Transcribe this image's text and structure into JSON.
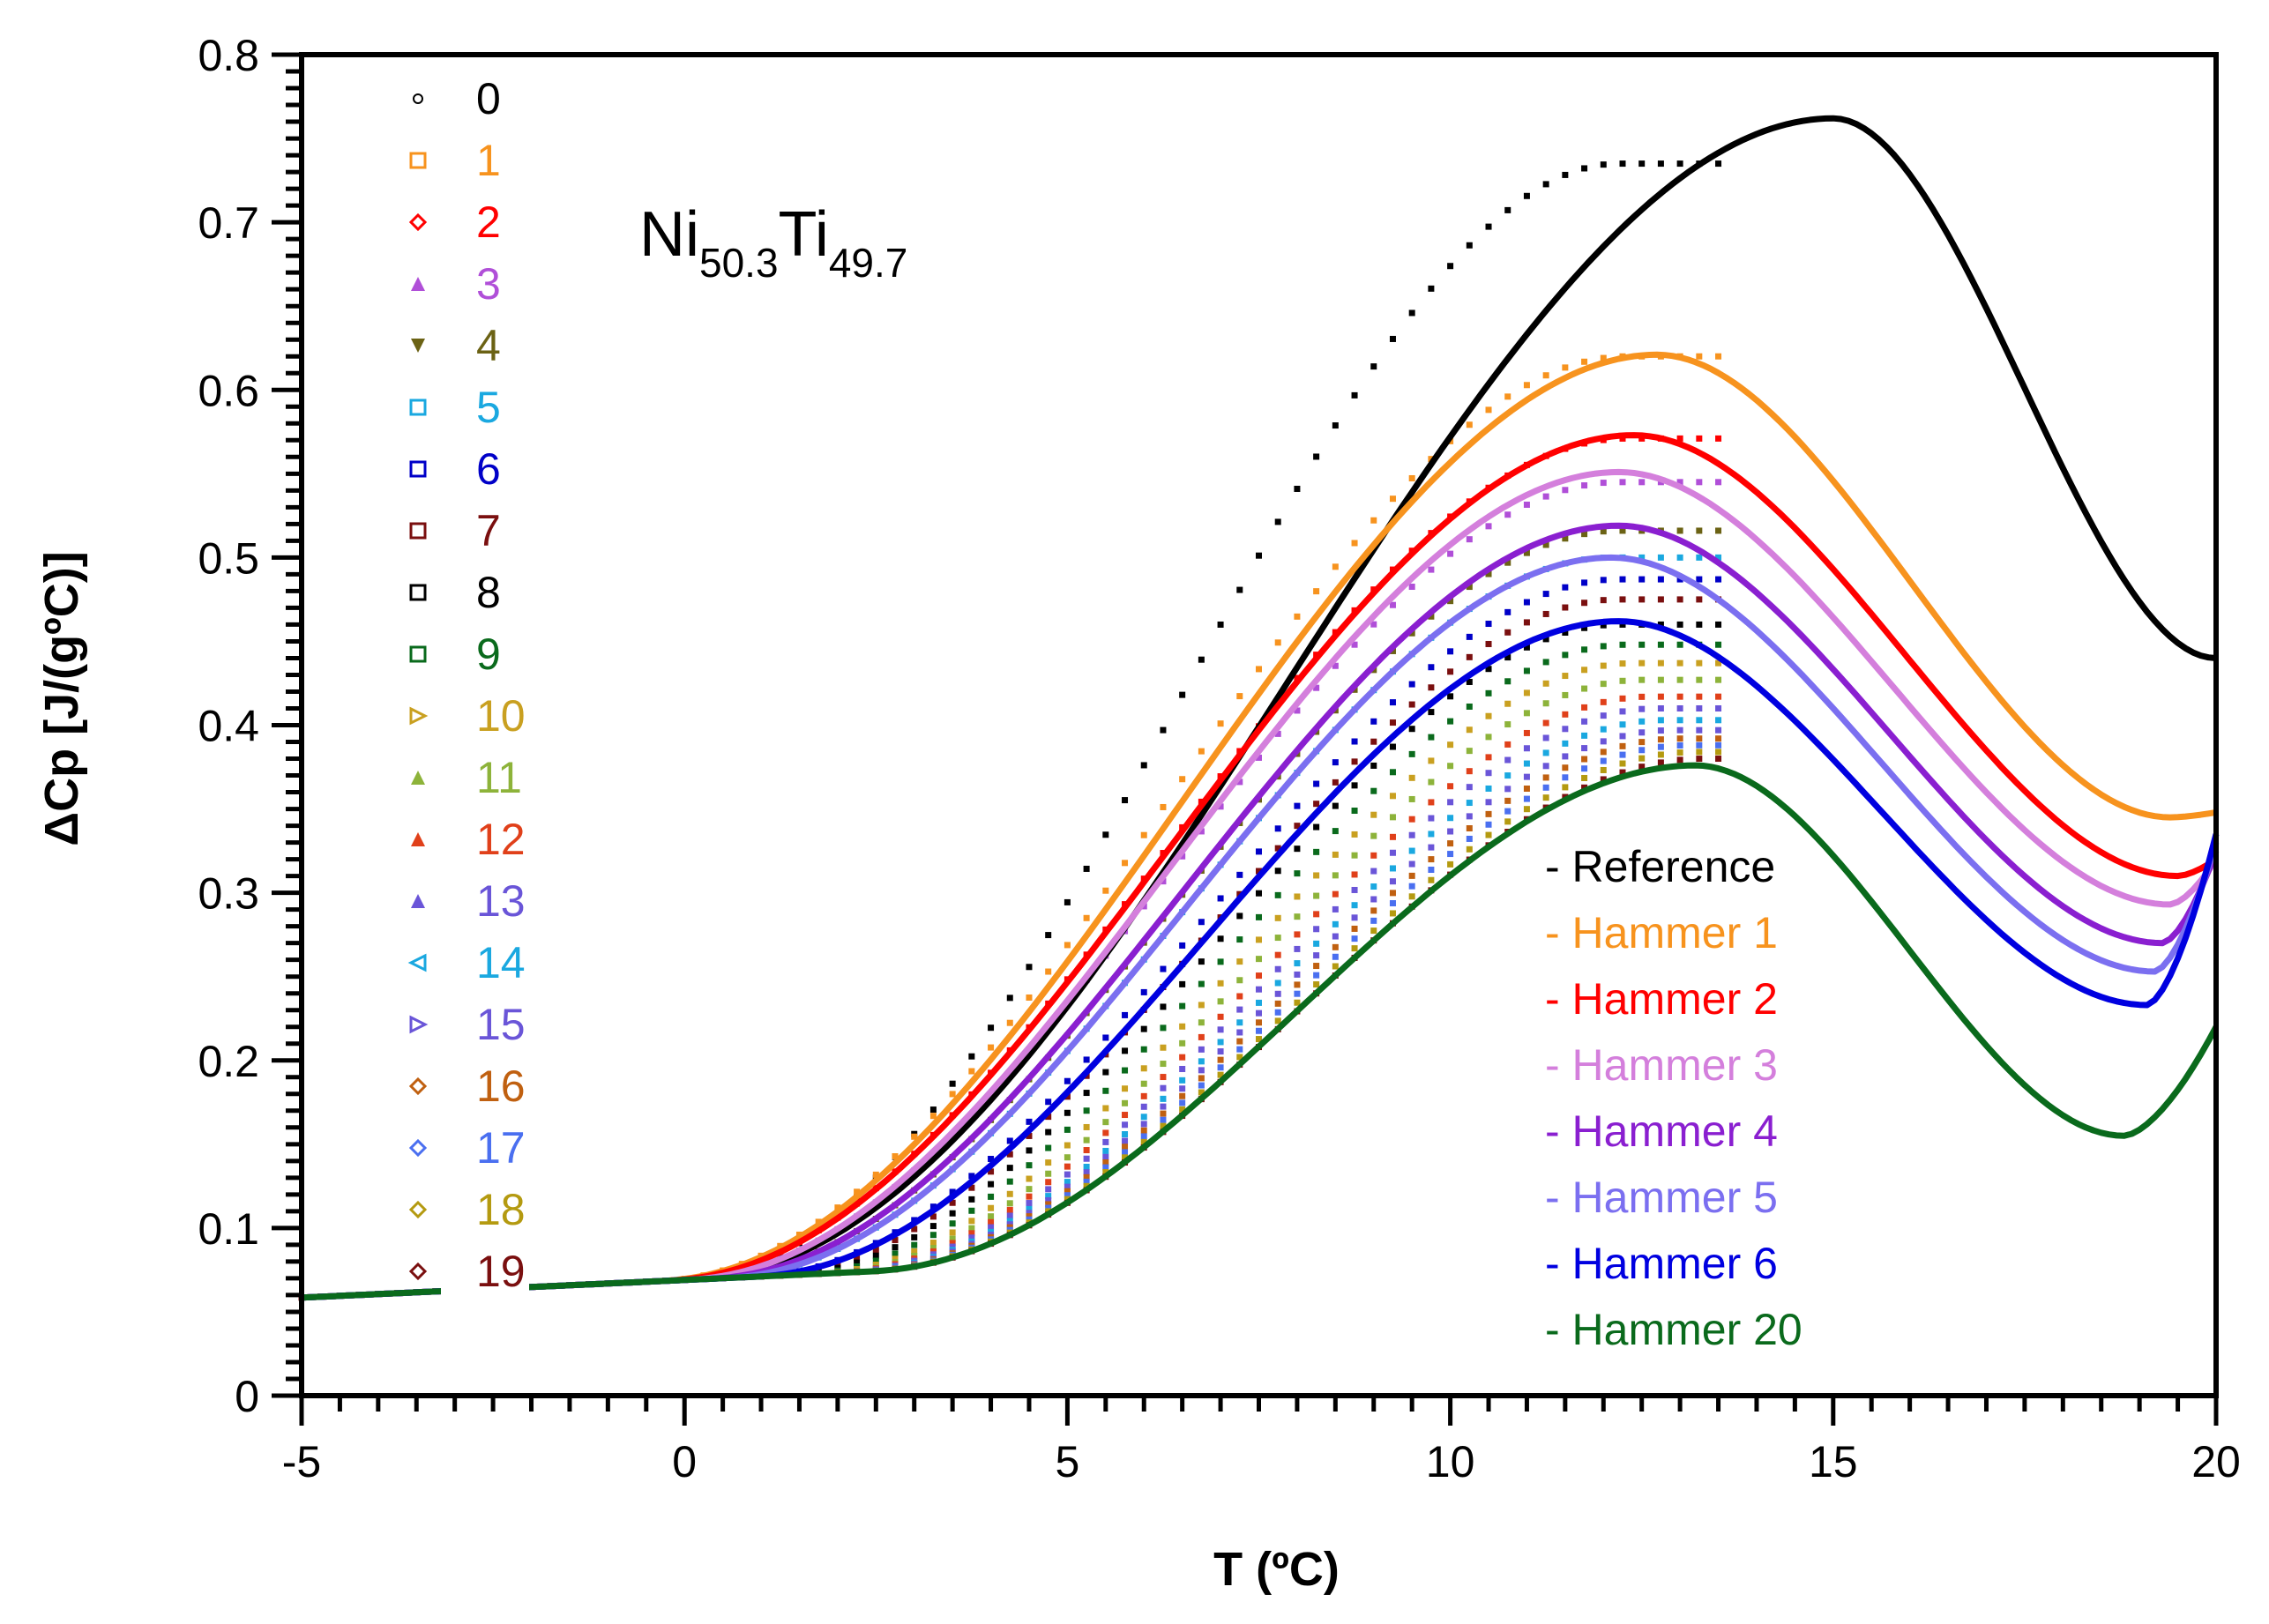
{
  "chart_data": {
    "type": "line",
    "title": "",
    "xlabel": "T (ºC)",
    "ylabel": "ΔCp [J/(gºC)]",
    "xlim": [
      -5,
      20
    ],
    "ylim": [
      0,
      0.8
    ],
    "x_ticks": [
      "-5",
      "0",
      "5",
      "10",
      "15",
      "20"
    ],
    "y_ticks": [
      "0",
      "0.1",
      "0.2",
      "0.3",
      "0.4",
      "0.5",
      "0.6",
      "0.7",
      "0.8"
    ],
    "annotation": {
      "base1": "Ni",
      "sub1": "50.3",
      "base2": "Ti",
      "sub2": "49.7"
    },
    "line_legend": {
      "location": "lower-right",
      "entries": [
        "- Reference",
        "- Hammer 1",
        "- Hammer 2",
        "- Hammer 3",
        "- Hammer 4",
        "- Hammer 5",
        "- Hammer 6",
        "- Hammer 20"
      ]
    },
    "series": [
      {
        "name": "Reference",
        "color": "#000000",
        "peak_x": 15.0,
        "peak_y": 0.762,
        "end_y": 0.44,
        "low_x": 20.0,
        "low_y": 0.44,
        "onset": 0.05
      },
      {
        "name": "Hammer 1",
        "color": "#f7931e",
        "peak_x": 12.7,
        "peak_y": 0.621,
        "end_y": 0.348,
        "low_x": 19.4,
        "low_y": 0.345,
        "onset": -0.35
      },
      {
        "name": "Hammer 2",
        "color": "#ff0000",
        "peak_x": 12.4,
        "peak_y": 0.573,
        "end_y": 0.32,
        "low_x": 19.5,
        "low_y": 0.31,
        "onset": -0.25
      },
      {
        "name": "Hammer 3",
        "color": "#d47fdc",
        "peak_x": 12.2,
        "peak_y": 0.551,
        "end_y": 0.32,
        "low_x": 19.4,
        "low_y": 0.293,
        "onset": 0.0
      },
      {
        "name": "Hammer 4",
        "color": "#8a1fd0",
        "peak_x": 12.2,
        "peak_y": 0.519,
        "end_y": 0.325,
        "low_x": 19.3,
        "low_y": 0.27,
        "onset": 0.3
      },
      {
        "name": "Hammer 5",
        "color": "#7b6ff0",
        "peak_x": 12.1,
        "peak_y": 0.5,
        "end_y": 0.33,
        "low_x": 19.2,
        "low_y": 0.253,
        "onset": 0.5
      },
      {
        "name": "Hammer 6",
        "color": "#0000e0",
        "peak_x": 12.2,
        "peak_y": 0.462,
        "end_y": 0.335,
        "low_x": 19.1,
        "low_y": 0.233,
        "onset": 0.9
      },
      {
        "name": "Hammer 20",
        "color": "#0a6a1c",
        "peak_x": 13.2,
        "peak_y": 0.376,
        "end_y": 0.22,
        "low_x": 18.8,
        "low_y": 0.155,
        "onset": 2.4
      }
    ],
    "scatter_legend": {
      "location": "upper-left",
      "entries": [
        {
          "label": "0",
          "color": "#000000",
          "marker": "circle"
        },
        {
          "label": "1",
          "color": "#f7931e",
          "marker": "square"
        },
        {
          "label": "2",
          "color": "#ff0000",
          "marker": "diamond"
        },
        {
          "label": "3",
          "color": "#b04fd8",
          "marker": "triangle-up"
        },
        {
          "label": "4",
          "color": "#6b6214",
          "marker": "triangle-down"
        },
        {
          "label": "5",
          "color": "#1aa8e0",
          "marker": "square"
        },
        {
          "label": "6",
          "color": "#0000c8",
          "marker": "square"
        },
        {
          "label": "7",
          "color": "#7a0f0f",
          "marker": "square"
        },
        {
          "label": "8",
          "color": "#000000",
          "marker": "square"
        },
        {
          "label": "9",
          "color": "#0a6a1c",
          "marker": "square"
        },
        {
          "label": "10",
          "color": "#c9a020",
          "marker": "triangle-right"
        },
        {
          "label": "11",
          "color": "#8db33a",
          "marker": "triangle-up"
        },
        {
          "label": "12",
          "color": "#e0401a",
          "marker": "triangle-up"
        },
        {
          "label": "13",
          "color": "#6a55d8",
          "marker": "triangle-up"
        },
        {
          "label": "14",
          "color": "#1aa8e0",
          "marker": "triangle-left"
        },
        {
          "label": "15",
          "color": "#6a55d8",
          "marker": "triangle-right"
        },
        {
          "label": "16",
          "color": "#c06010",
          "marker": "diamond"
        },
        {
          "label": "17",
          "color": "#4a6ff0",
          "marker": "diamond"
        },
        {
          "label": "18",
          "color": "#b49a10",
          "marker": "diamond"
        },
        {
          "label": "19",
          "color": "#7a0f0f",
          "marker": "diamond"
        }
      ]
    },
    "scatter_runs": [
      {
        "run": 0,
        "color": "#000000",
        "onset": 0.05,
        "plateau_start": 12.2,
        "plateau_y": 0.735
      },
      {
        "run": 1,
        "color": "#f7931e",
        "onset": -0.35,
        "plateau_start": 12.3,
        "plateau_y": 0.62
      },
      {
        "run": 2,
        "color": "#ff0000",
        "onset": -0.25,
        "plateau_start": 12.3,
        "plateau_y": 0.571
      },
      {
        "run": 3,
        "color": "#b04fd8",
        "onset": 0.0,
        "plateau_start": 12.2,
        "plateau_y": 0.545
      },
      {
        "run": 4,
        "color": "#6b6214",
        "onset": 0.3,
        "plateau_start": 12.2,
        "plateau_y": 0.516
      },
      {
        "run": 5,
        "color": "#1aa8e0",
        "onset": 0.5,
        "plateau_start": 12.1,
        "plateau_y": 0.5
      },
      {
        "run": 6,
        "color": "#0000c8",
        "onset": 0.9,
        "plateau_start": 12.2,
        "plateau_y": 0.487
      },
      {
        "run": 7,
        "color": "#7a0f0f",
        "onset": 1.1,
        "plateau_start": 12.2,
        "plateau_y": 0.475
      },
      {
        "run": 8,
        "color": "#000000",
        "onset": 1.3,
        "plateau_start": 12.2,
        "plateau_y": 0.46
      },
      {
        "run": 9,
        "color": "#0a6a1c",
        "onset": 1.5,
        "plateau_start": 12.3,
        "plateau_y": 0.448
      },
      {
        "run": 10,
        "color": "#c9a020",
        "onset": 1.7,
        "plateau_start": 12.4,
        "plateau_y": 0.437
      },
      {
        "run": 11,
        "color": "#8db33a",
        "onset": 1.85,
        "plateau_start": 12.5,
        "plateau_y": 0.427
      },
      {
        "run": 12,
        "color": "#e0401a",
        "onset": 1.95,
        "plateau_start": 12.6,
        "plateau_y": 0.417
      },
      {
        "run": 13,
        "color": "#6a55d8",
        "onset": 2.05,
        "plateau_start": 12.7,
        "plateau_y": 0.41
      },
      {
        "run": 14,
        "color": "#1aa8e0",
        "onset": 2.15,
        "plateau_start": 12.8,
        "plateau_y": 0.403
      },
      {
        "run": 15,
        "color": "#6a55d8",
        "onset": 2.2,
        "plateau_start": 12.9,
        "plateau_y": 0.397
      },
      {
        "run": 16,
        "color": "#c06010",
        "onset": 2.25,
        "plateau_start": 13.0,
        "plateau_y": 0.392
      },
      {
        "run": 17,
        "color": "#4a6ff0",
        "onset": 2.3,
        "plateau_start": 13.1,
        "plateau_y": 0.388
      },
      {
        "run": 18,
        "color": "#b49a10",
        "onset": 2.35,
        "plateau_start": 13.2,
        "plateau_y": 0.384
      },
      {
        "run": 19,
        "color": "#7a0f0f",
        "onset": 2.4,
        "plateau_start": 13.3,
        "plateau_y": 0.38
      }
    ],
    "scatter_end_x": 13.6,
    "grid": false
  }
}
